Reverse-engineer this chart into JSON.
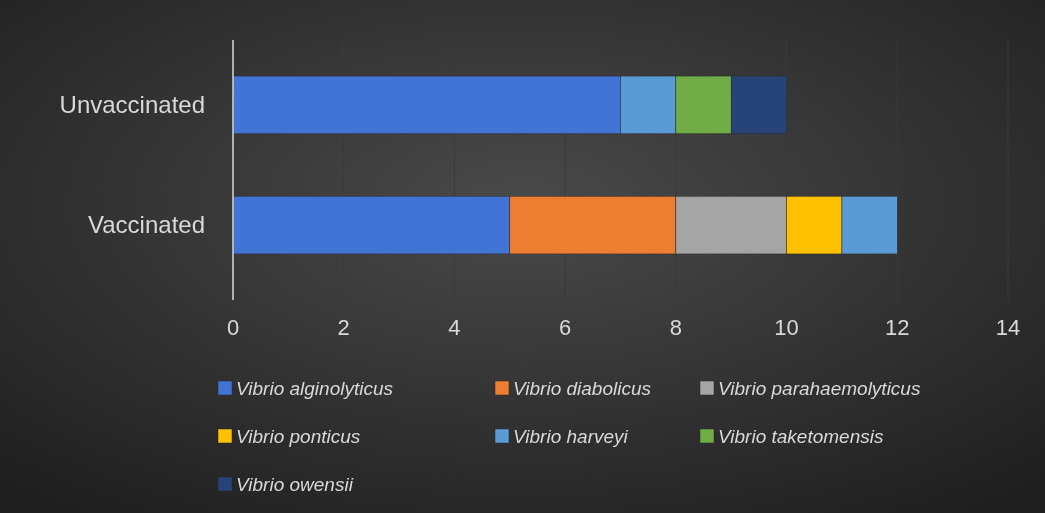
{
  "chart_data": {
    "type": "bar",
    "orientation": "horizontal",
    "stacked": true,
    "categories": [
      "Unvaccinated",
      "Vaccinated"
    ],
    "series": [
      {
        "name": "Vibrio alginolyticus",
        "color": "#4274d6",
        "values": [
          7,
          5
        ]
      },
      {
        "name": "Vibrio diabolicus",
        "color": "#ed7d31",
        "values": [
          null,
          3
        ]
      },
      {
        "name": "Vibrio parahaemolyticus",
        "color": "#a5a5a5",
        "values": [
          null,
          2
        ]
      },
      {
        "name": "Vibrio ponticus",
        "color": "#ffc000",
        "values": [
          null,
          1
        ]
      },
      {
        "name": "Vibrio harveyi",
        "color": "#5b9bd5",
        "values": [
          1,
          1
        ]
      },
      {
        "name": "Vibrio taketomensis",
        "color": "#70ad47",
        "values": [
          1,
          null
        ]
      },
      {
        "name": "Vibrio owensii",
        "color": "#264478",
        "values": [
          1,
          null
        ]
      }
    ],
    "xlim": [
      0,
      14
    ],
    "xticks": [
      0,
      2,
      4,
      6,
      8,
      10,
      12,
      14
    ],
    "grid": "x",
    "legend": "bottom"
  }
}
